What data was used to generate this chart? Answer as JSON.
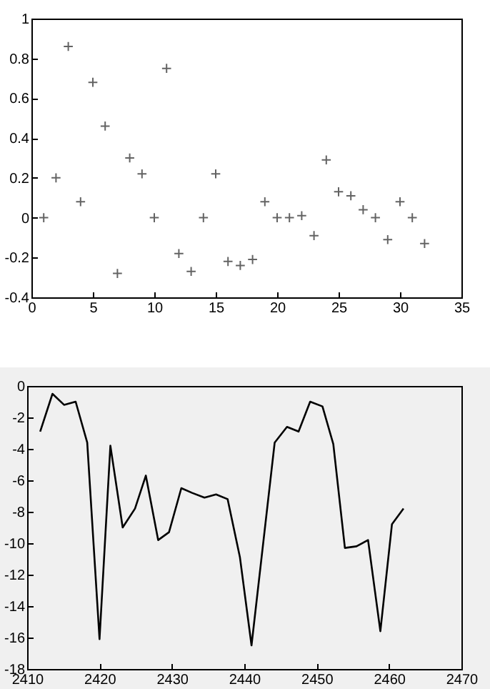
{
  "chart_data": [
    {
      "type": "scatter",
      "marker": "cross",
      "grid": false,
      "x": [
        1,
        2,
        3,
        4,
        5,
        6,
        7,
        8,
        9,
        10,
        11,
        12,
        13,
        14,
        15,
        16,
        17,
        18,
        19,
        20,
        21,
        22,
        23,
        24,
        25,
        26,
        27,
        28,
        29,
        30,
        31,
        32
      ],
      "series": [
        {
          "color": "#222222",
          "values": [
            0,
            0.2,
            0.86,
            0.08,
            0.68,
            0.46,
            -0.28,
            0.3,
            0.22,
            0,
            0.75,
            -0.18,
            -0.27,
            0,
            0.22,
            -0.22,
            -0.24,
            -0.21,
            0.08,
            0,
            0,
            0.01,
            -0.09,
            0.29,
            0.13,
            0.11,
            0.04,
            0,
            -0.11,
            0.08,
            0,
            -0.13
          ]
        }
      ],
      "xlim": [
        0,
        35
      ],
      "xticks": [
        0,
        5,
        10,
        15,
        20,
        25,
        30,
        35
      ],
      "ylim": [
        -0.4,
        1
      ],
      "yticks": [
        {
          "value": -0.4,
          "label": "-0.4"
        },
        {
          "value": -0.2,
          "label": "-0.2"
        },
        0,
        {
          "value": 0.2,
          "label": "0.2"
        },
        {
          "value": 0.4,
          "label": "0.4"
        },
        {
          "value": 0.6,
          "label": "0.6"
        },
        {
          "value": 0.8,
          "label": "0.8"
        },
        1
      ]
    },
    {
      "type": "line",
      "marker": "none",
      "grid": false,
      "x": [
        2411.8,
        2413.5,
        2415.1,
        2416.7,
        2418.3,
        2420.0,
        2421.5,
        2423.2,
        2424.9,
        2426.4,
        2428.1,
        2429.6,
        2431.3,
        2432.8,
        2434.5,
        2436.1,
        2437.7,
        2439.4,
        2441.0,
        2444.2,
        2445.9,
        2447.5,
        2449.1,
        2450.8,
        2452.3,
        2453.9,
        2455.5,
        2457.1,
        2458.8,
        2460.4,
        2462.0
      ],
      "series": [
        {
          "color": "#000000",
          "values": [
            -2.9,
            -0.5,
            -1.2,
            -1.0,
            -3.6,
            -16.1,
            -3.8,
            -9.0,
            -7.8,
            -5.7,
            -9.8,
            -9.3,
            -6.5,
            -6.8,
            -7.1,
            -6.9,
            -7.2,
            -10.9,
            -16.5,
            -3.6,
            -2.6,
            -2.9,
            -1.0,
            -1.3,
            -3.7,
            -10.3,
            -10.2,
            -9.8,
            -15.6,
            -8.8,
            -7.8
          ]
        }
      ],
      "xlim": [
        2410,
        2470
      ],
      "xticks": [
        2410,
        2420,
        2430,
        2440,
        2450,
        2460,
        2470
      ],
      "ylim": [
        -18,
        0
      ],
      "yticks": [
        -18,
        -16,
        -14,
        -12,
        -10,
        -8,
        -6,
        -4,
        -2,
        0
      ]
    }
  ]
}
